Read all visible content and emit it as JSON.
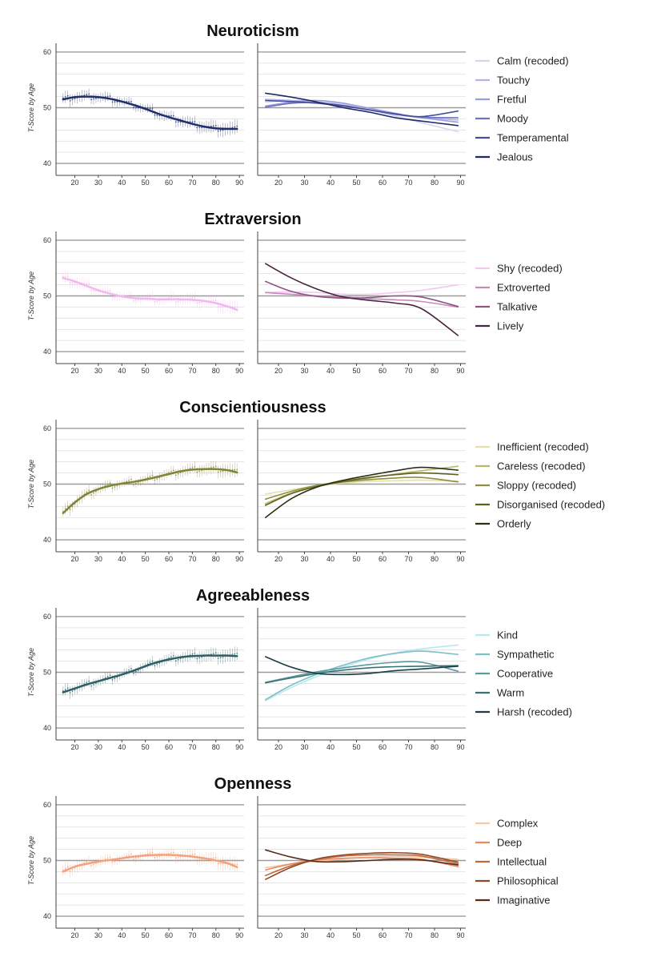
{
  "y_axis_label": "T-Score by Age",
  "x_ticks": [
    20,
    30,
    40,
    50,
    60,
    70,
    80,
    90
  ],
  "y_ticks": [
    40,
    50,
    60
  ],
  "panels": [
    {
      "title": "Neuroticism",
      "chart_data": {
        "type": "line",
        "ylabel": "T-Score by Age",
        "xlim": [
          12,
          92
        ],
        "ylim": [
          39,
          61
        ],
        "grid": true,
        "legend_position": "right",
        "overall": {
          "color": "#1e2f6b",
          "x": [
            15,
            20,
            25,
            30,
            35,
            40,
            45,
            50,
            55,
            60,
            65,
            70,
            75,
            80,
            85,
            89
          ],
          "y": [
            51.5,
            51.9,
            52.0,
            51.9,
            51.6,
            51.1,
            50.5,
            49.8,
            49.0,
            48.3,
            47.7,
            47.1,
            46.6,
            46.3,
            46.2,
            46.2
          ]
        },
        "items": [
          {
            "name": "Calm (recoded)",
            "color": "#d3d5f4",
            "x": [
              15,
              25,
              35,
              45,
              55,
              65,
              75,
              89
            ],
            "y": [
              51.0,
              51.3,
              51.2,
              50.6,
              49.6,
              48.5,
              47.3,
              45.7
            ]
          },
          {
            "name": "Touchy",
            "color": "#b2b4e8",
            "x": [
              15,
              25,
              35,
              45,
              55,
              65,
              75,
              89
            ],
            "y": [
              51.5,
              51.3,
              50.9,
              50.4,
              49.6,
              48.8,
              48.2,
              47.8
            ]
          },
          {
            "name": "Fretful",
            "color": "#9a9ddd",
            "x": [
              15,
              25,
              35,
              45,
              55,
              65,
              75,
              89
            ],
            "y": [
              50.3,
              51.0,
              51.3,
              50.8,
              49.9,
              49.0,
              48.2,
              47.4
            ]
          },
          {
            "name": "Moody",
            "color": "#6f72c0",
            "x": [
              15,
              25,
              35,
              45,
              55,
              65,
              75,
              89
            ],
            "y": [
              50.1,
              50.8,
              50.9,
              50.4,
              49.6,
              48.8,
              48.3,
              48.2
            ]
          },
          {
            "name": "Temperamental",
            "color": "#464f99",
            "x": [
              15,
              25,
              35,
              45,
              55,
              65,
              75,
              89
            ],
            "y": [
              51.3,
              51.1,
              50.8,
              50.3,
              49.6,
              48.9,
              48.4,
              49.4
            ]
          },
          {
            "name": "Jealous",
            "color": "#1f2a66",
            "x": [
              15,
              25,
              35,
              45,
              55,
              65,
              75,
              89
            ],
            "y": [
              52.6,
              51.9,
              51.0,
              50.0,
              49.2,
              48.2,
              47.6,
              46.8
            ]
          }
        ]
      }
    },
    {
      "title": "Extraversion",
      "chart_data": {
        "type": "line",
        "ylabel": "T-Score by Age",
        "xlim": [
          12,
          92
        ],
        "ylim": [
          39,
          61
        ],
        "grid": true,
        "legend_position": "right",
        "overall": {
          "color": "#f0b8ec",
          "x": [
            15,
            20,
            25,
            30,
            35,
            40,
            45,
            50,
            55,
            60,
            65,
            70,
            75,
            80,
            85,
            89
          ],
          "y": [
            53.2,
            52.6,
            51.8,
            51.0,
            50.4,
            49.9,
            49.6,
            49.5,
            49.4,
            49.4,
            49.4,
            49.3,
            49.1,
            48.7,
            48.1,
            47.5
          ]
        },
        "items": [
          {
            "name": "Shy (recoded)",
            "color": "#f4c6f0",
            "x": [
              15,
              25,
              35,
              45,
              55,
              65,
              75,
              89
            ],
            "y": [
              50.6,
              50.7,
              50.6,
              50.3,
              50.3,
              50.6,
              51.0,
              52.0
            ]
          },
          {
            "name": "Extroverted",
            "color": "#c68abb",
            "x": [
              15,
              25,
              35,
              45,
              55,
              65,
              75,
              89
            ],
            "y": [
              50.6,
              50.3,
              50.0,
              49.8,
              49.5,
              49.3,
              49.0,
              48.0
            ]
          },
          {
            "name": "Talkative",
            "color": "#8e5484",
            "x": [
              15,
              25,
              35,
              45,
              55,
              65,
              75,
              89
            ],
            "y": [
              52.6,
              50.8,
              49.9,
              49.6,
              49.7,
              50.0,
              49.8,
              48.1
            ]
          },
          {
            "name": "Lively",
            "color": "#4a2440",
            "x": [
              15,
              25,
              35,
              45,
              55,
              65,
              75,
              89
            ],
            "y": [
              55.8,
              53.2,
              51.2,
              49.8,
              49.2,
              48.7,
              47.7,
              42.9
            ]
          }
        ]
      }
    },
    {
      "title": "Conscientiousness",
      "chart_data": {
        "type": "line",
        "ylabel": "T-Score by Age",
        "xlim": [
          12,
          92
        ],
        "ylim": [
          39,
          61
        ],
        "grid": true,
        "legend_position": "right",
        "overall": {
          "color": "#808436",
          "x": [
            15,
            20,
            25,
            30,
            35,
            40,
            45,
            50,
            55,
            60,
            65,
            70,
            75,
            80,
            85,
            89
          ],
          "y": [
            44.8,
            46.7,
            48.2,
            49.1,
            49.7,
            50.1,
            50.4,
            50.8,
            51.3,
            51.8,
            52.3,
            52.6,
            52.7,
            52.7,
            52.5,
            52.1
          ]
        },
        "items": [
          {
            "name": "Inefficient (recoded)",
            "color": "#e3e1a6",
            "x": [
              15,
              25,
              35,
              45,
              55,
              65,
              75,
              89
            ],
            "y": [
              48.2,
              49.0,
              49.7,
              50.2,
              50.5,
              50.6,
              50.7,
              50.5
            ]
          },
          {
            "name": "Careless (recoded)",
            "color": "#b7b86a",
            "x": [
              15,
              25,
              35,
              45,
              55,
              65,
              75,
              89
            ],
            "y": [
              46.5,
              48.4,
              49.6,
              50.4,
              51.1,
              51.8,
              52.4,
              53.2
            ]
          },
          {
            "name": "Sloppy (recoded)",
            "color": "#8f8e45",
            "x": [
              15,
              25,
              35,
              45,
              55,
              65,
              75,
              89
            ],
            "y": [
              47.3,
              48.7,
              49.8,
              50.4,
              50.8,
              51.1,
              51.2,
              50.4
            ]
          },
          {
            "name": "Disorganised (recoded)",
            "color": "#5f6020",
            "x": [
              15,
              25,
              35,
              45,
              55,
              65,
              75,
              89
            ],
            "y": [
              46.2,
              48.3,
              49.6,
              50.5,
              51.2,
              51.7,
              52.0,
              51.7
            ]
          },
          {
            "name": "Orderly",
            "color": "#2e3012",
            "x": [
              15,
              25,
              35,
              45,
              55,
              65,
              75,
              89
            ],
            "y": [
              44.0,
              47.4,
              49.5,
              50.7,
              51.6,
              52.4,
              53.0,
              52.5
            ]
          }
        ]
      }
    },
    {
      "title": "Agreeableness",
      "chart_data": {
        "type": "line",
        "ylabel": "T-Score by Age",
        "xlim": [
          12,
          92
        ],
        "ylim": [
          39,
          61
        ],
        "grid": true,
        "legend_position": "right",
        "overall": {
          "color": "#2e5f66",
          "x": [
            15,
            20,
            25,
            30,
            35,
            40,
            45,
            50,
            55,
            60,
            65,
            70,
            75,
            80,
            85,
            89
          ],
          "y": [
            46.4,
            47.1,
            47.8,
            48.4,
            49.0,
            49.6,
            50.3,
            51.1,
            51.8,
            52.3,
            52.7,
            52.9,
            53.0,
            53.0,
            53.0,
            52.9
          ]
        },
        "items": [
          {
            "name": "Kind",
            "color": "#b8e8ee",
            "x": [
              15,
              25,
              35,
              45,
              55,
              65,
              75,
              89
            ],
            "y": [
              44.9,
              47.3,
              49.3,
              51.0,
              52.4,
              53.5,
              54.2,
              54.9
            ]
          },
          {
            "name": "Sympathetic",
            "color": "#7ec0c8",
            "x": [
              15,
              25,
              35,
              45,
              55,
              65,
              75,
              89
            ],
            "y": [
              45.1,
              47.7,
              49.7,
              51.3,
              52.6,
              53.4,
              53.8,
              53.2
            ]
          },
          {
            "name": "Cooperative",
            "color": "#5a9aa2",
            "x": [
              15,
              25,
              35,
              45,
              55,
              65,
              75,
              89
            ],
            "y": [
              48.2,
              49.2,
              50.1,
              50.8,
              51.4,
              51.8,
              51.8,
              50.2
            ]
          },
          {
            "name": "Warm",
            "color": "#3a7077",
            "x": [
              15,
              25,
              35,
              45,
              55,
              65,
              75,
              89
            ],
            "y": [
              48.1,
              49.0,
              49.8,
              50.4,
              50.8,
              51.0,
              51.1,
              51.2
            ]
          },
          {
            "name": "Harsh (recoded)",
            "color": "#1c3f45",
            "x": [
              15,
              25,
              35,
              45,
              55,
              65,
              75,
              89
            ],
            "y": [
              52.8,
              50.9,
              49.8,
              49.6,
              49.8,
              50.3,
              50.6,
              51.1
            ]
          }
        ]
      }
    },
    {
      "title": "Openness",
      "chart_data": {
        "type": "line",
        "ylabel": "T-Score by Age",
        "xlim": [
          12,
          92
        ],
        "ylim": [
          39,
          61
        ],
        "grid": true,
        "legend_position": "right",
        "overall": {
          "color": "#f2a27c",
          "x": [
            15,
            20,
            25,
            30,
            35,
            40,
            45,
            50,
            55,
            60,
            65,
            70,
            75,
            80,
            85,
            89
          ],
          "y": [
            48.0,
            48.9,
            49.4,
            49.8,
            50.1,
            50.4,
            50.7,
            50.9,
            51.0,
            51.0,
            50.9,
            50.7,
            50.4,
            50.0,
            49.5,
            48.8
          ]
        },
        "items": [
          {
            "name": "Complex",
            "color": "#f7c8a4",
            "x": [
              15,
              25,
              35,
              45,
              55,
              65,
              75,
              89
            ],
            "y": [
              48.7,
              49.4,
              49.9,
              50.3,
              50.6,
              50.7,
              50.6,
              50.2
            ]
          },
          {
            "name": "Deep",
            "color": "#e88a64",
            "x": [
              15,
              25,
              35,
              45,
              55,
              65,
              75,
              89
            ],
            "y": [
              48.3,
              49.4,
              50.1,
              50.4,
              50.5,
              50.4,
              50.2,
              48.9
            ]
          },
          {
            "name": "Intellectual",
            "color": "#c06a3c",
            "x": [
              15,
              25,
              35,
              45,
              55,
              65,
              75,
              89
            ],
            "y": [
              47.3,
              49.1,
              50.2,
              50.8,
              51.0,
              51.0,
              50.8,
              49.4
            ]
          },
          {
            "name": "Philosophical",
            "color": "#8e4a26",
            "x": [
              15,
              25,
              35,
              45,
              55,
              65,
              75,
              89
            ],
            "y": [
              46.6,
              48.8,
              50.3,
              51.0,
              51.3,
              51.4,
              51.1,
              49.7
            ]
          },
          {
            "name": "Imaginative",
            "color": "#5a2a14",
            "x": [
              15,
              25,
              35,
              45,
              55,
              65,
              75,
              89
            ],
            "y": [
              51.9,
              50.6,
              49.8,
              49.8,
              50.0,
              50.2,
              50.1,
              49.2
            ]
          }
        ]
      }
    }
  ]
}
